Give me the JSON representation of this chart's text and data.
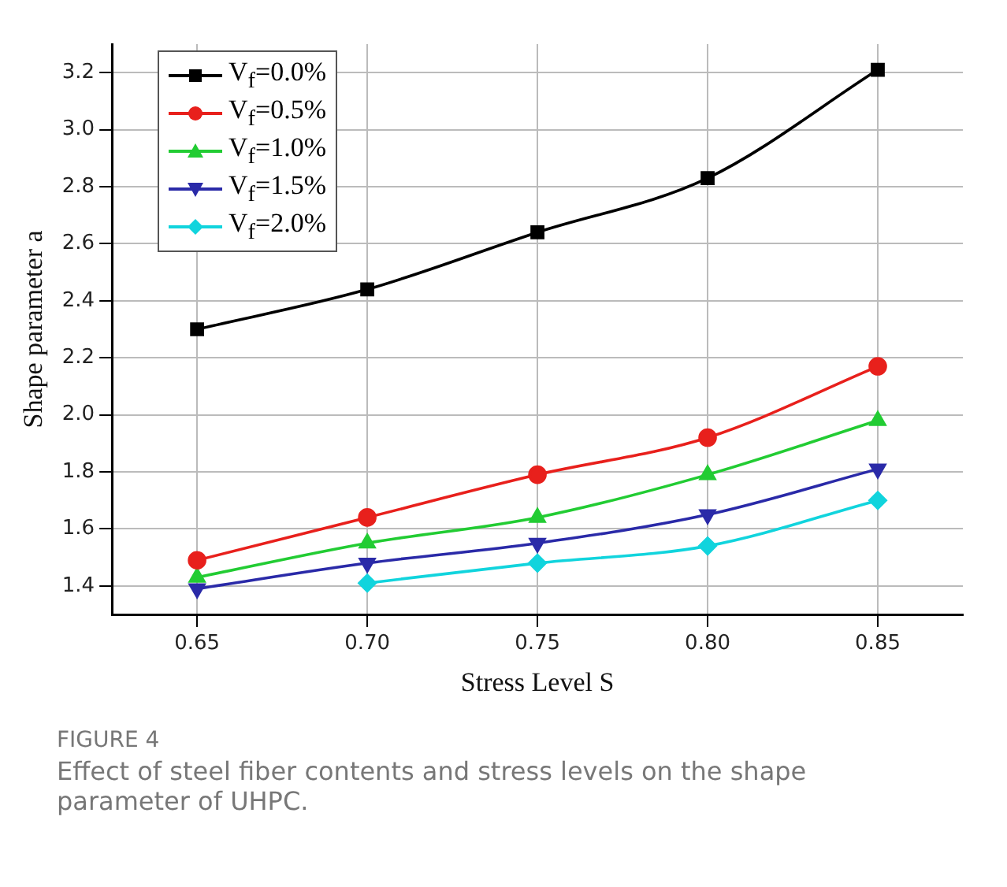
{
  "chart_data": {
    "type": "line",
    "title": "FIGURE 4",
    "subtitle": "Effect of steel fiber contents and stress levels on the shape parameter of UHPC.",
    "xlabel": "Stress Level S",
    "ylabel": "Shape parameter a",
    "x": [
      0.65,
      0.7,
      0.75,
      0.8,
      0.85
    ],
    "series": [
      {
        "name": "V$_{f}$=0.0%",
        "color": "#000000",
        "marker": "square",
        "values": [
          2.3,
          2.44,
          2.64,
          2.83,
          3.21
        ]
      },
      {
        "name": "V$_{f}$=0.5%",
        "color": "#e8201c",
        "marker": "circle",
        "values": [
          1.49,
          1.64,
          1.79,
          1.92,
          2.17
        ]
      },
      {
        "name": "V$_{f}$=1.0%",
        "color": "#22cc33",
        "marker": "triangle",
        "values": [
          1.43,
          1.55,
          1.64,
          1.79,
          1.98
        ]
      },
      {
        "name": "V$_{f}$=1.5%",
        "color": "#2a2aa8",
        "marker": "triangle-down",
        "values": [
          1.39,
          1.48,
          1.55,
          1.65,
          1.81
        ]
      },
      {
        "name": "V$_{f}$=2.0%",
        "color": "#11d4dd",
        "marker": "diamond",
        "values": [
          null,
          1.41,
          1.48,
          1.54,
          1.7
        ]
      }
    ],
    "xlim": [
      0.625,
      0.875
    ],
    "xticks": [
      {
        "value": 0.65,
        "label": "0.65"
      },
      {
        "value": 0.7,
        "label": "0.70"
      },
      {
        "value": 0.75,
        "label": "0.75"
      },
      {
        "value": 0.8,
        "label": "0.80"
      },
      {
        "value": 0.85,
        "label": "0.85"
      }
    ],
    "ylim": [
      1.3,
      3.3
    ],
    "yticks": [
      {
        "value": 1.4,
        "label": "1.4"
      },
      {
        "value": 1.6,
        "label": "1.6"
      },
      {
        "value": 1.8,
        "label": "1.8"
      },
      {
        "value": 2.0,
        "label": "2.0"
      },
      {
        "value": 2.2,
        "label": "2.2"
      },
      {
        "value": 2.4,
        "label": "2.4"
      },
      {
        "value": 2.6,
        "label": "2.6"
      },
      {
        "value": 2.8,
        "label": "2.8"
      },
      {
        "value": 3.0,
        "label": "3.0"
      },
      {
        "value": 3.2,
        "label": "3.2"
      }
    ],
    "grid": true,
    "legend": "top left",
    "line_style": "solid"
  }
}
